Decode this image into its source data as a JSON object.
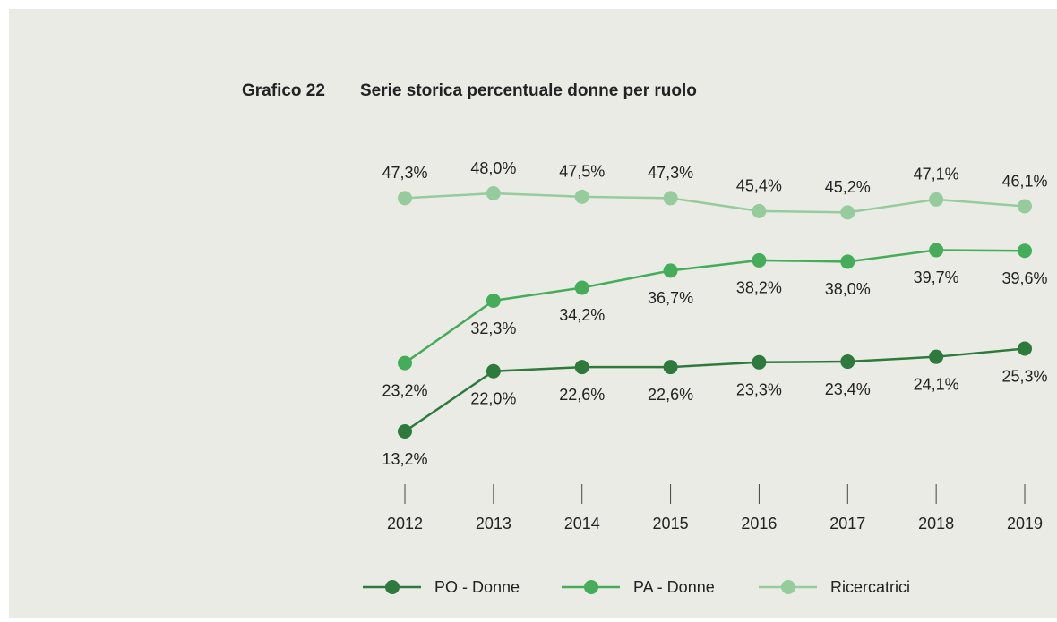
{
  "chart_data": {
    "type": "line",
    "title_label": "Grafico 22",
    "title": "Serie storica percentuale donne per ruolo",
    "categories": [
      "2012",
      "2013",
      "2014",
      "2015",
      "2016",
      "2017",
      "2018",
      "2019"
    ],
    "series": [
      {
        "name": "PO - Donne",
        "color": "#2e7a3c",
        "label_position": "below",
        "values": [
          13.2,
          22.0,
          22.6,
          22.6,
          23.3,
          23.4,
          24.1,
          25.3
        ],
        "value_labels": [
          "13,2%",
          "22,0%",
          "22,6%",
          "22,6%",
          "23,3%",
          "23,4%",
          "24,1%",
          "25,3%"
        ]
      },
      {
        "name": "PA - Donne",
        "color": "#45ad5a",
        "label_position": "below",
        "values": [
          23.2,
          32.3,
          34.2,
          36.7,
          38.2,
          38.0,
          39.7,
          39.6
        ],
        "value_labels": [
          "23,2%",
          "32,3%",
          "34,2%",
          "36,7%",
          "38,2%",
          "38,0%",
          "39,7%",
          "39,6%"
        ]
      },
      {
        "name": "Ricercatrici",
        "color": "#96cc9c",
        "label_position": "above",
        "values": [
          47.3,
          48.0,
          47.5,
          47.3,
          45.4,
          45.2,
          47.1,
          46.1
        ],
        "value_labels": [
          "47,3%",
          "48,0%",
          "47,5%",
          "47,3%",
          "45,4%",
          "45,2%",
          "47,1%",
          "46,1%"
        ]
      }
    ]
  }
}
